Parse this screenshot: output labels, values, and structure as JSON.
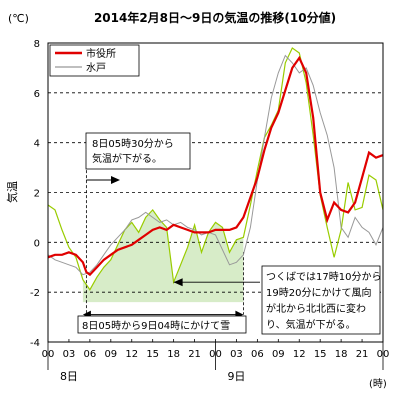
{
  "chart_data": {
    "type": "line",
    "title": "2014年2月8日～9日の気温の推移(10分値)",
    "unit_label": "(℃)",
    "ylabel": "気温",
    "xunit_label": "(時)",
    "ylim": [
      -4,
      8
    ],
    "yticks": [
      "-4",
      "-2",
      "0",
      "2",
      "4",
      "6",
      "8"
    ],
    "xlim": [
      0,
      48
    ],
    "xticks": [
      "00",
      "03",
      "06",
      "09",
      "12",
      "15",
      "18",
      "21",
      "00",
      "03",
      "06",
      "09",
      "12",
      "15",
      "18",
      "21",
      "00"
    ],
    "day_labels": [
      {
        "text": "8日",
        "hour": 3
      },
      {
        "text": "9日",
        "hour": 27
      }
    ],
    "legend": {
      "placement": "top-left"
    },
    "grid": "horizontal-dashed",
    "colors": {
      "市役所": "#e00000",
      "水戸": "#999999",
      "green": "#99cc00",
      "snow_fill": "#d7ecc8",
      "snow_border": "#000000"
    },
    "series": [
      {
        "name": "市役所",
        "x": [
          0,
          1,
          2,
          3,
          4,
          5,
          5.5,
          6,
          7,
          8,
          9,
          10,
          11,
          12,
          13,
          14,
          15,
          16,
          17,
          18,
          19,
          20,
          21,
          22,
          23,
          24,
          25,
          26,
          27,
          28,
          29,
          30,
          31,
          32,
          33,
          34,
          35,
          36,
          37,
          38,
          39,
          40,
          41,
          42,
          43,
          44,
          45,
          46,
          47,
          48
        ],
        "y": [
          -0.6,
          -0.5,
          -0.5,
          -0.4,
          -0.5,
          -0.8,
          -1.2,
          -1.3,
          -1.0,
          -0.7,
          -0.5,
          -0.3,
          -0.2,
          -0.1,
          0.1,
          0.3,
          0.5,
          0.6,
          0.5,
          0.7,
          0.6,
          0.5,
          0.4,
          0.4,
          0.4,
          0.5,
          0.5,
          0.5,
          0.6,
          1.0,
          1.8,
          2.6,
          3.7,
          4.6,
          5.2,
          6.1,
          7.0,
          7.4,
          6.8,
          5.0,
          2.0,
          0.9,
          1.6,
          1.3,
          1.2,
          1.6,
          2.6,
          3.6,
          3.4,
          3.5
        ]
      },
      {
        "name": "水戸",
        "x": [
          0,
          1,
          2,
          3,
          4,
          5,
          6,
          7,
          8,
          9,
          10,
          11,
          12,
          13,
          14,
          15,
          16,
          17,
          18,
          19,
          20,
          21,
          22,
          23,
          24,
          25,
          26,
          27,
          28,
          29,
          30,
          31,
          32,
          33,
          34,
          35,
          36,
          37,
          38,
          39,
          40,
          41,
          42,
          43,
          44,
          45,
          46,
          47,
          48
        ],
        "y": [
          -0.5,
          -0.7,
          -0.8,
          -0.9,
          -1.0,
          -1.3,
          -1.2,
          -0.9,
          -0.5,
          -0.1,
          0.2,
          0.5,
          0.9,
          1.0,
          1.2,
          1.0,
          0.8,
          0.9,
          0.7,
          0.8,
          0.6,
          0.5,
          0.3,
          0.4,
          0.3,
          -0.3,
          -0.9,
          -0.8,
          -0.5,
          0.6,
          2.5,
          4.2,
          5.8,
          6.8,
          7.5,
          7.2,
          6.8,
          7.0,
          6.3,
          5.2,
          4.3,
          3.0,
          0.6,
          0.2,
          1.0,
          0.6,
          0.4,
          -0.1,
          0.6
        ]
      },
      {
        "x": [
          0,
          1,
          2,
          3,
          4,
          5,
          6,
          7,
          8,
          9,
          10,
          11,
          12,
          13,
          14,
          15,
          16,
          17,
          18,
          19,
          20,
          21,
          22,
          23,
          24,
          25,
          26,
          27,
          28,
          29,
          30,
          31,
          32,
          33,
          34,
          35,
          36,
          37,
          38,
          39,
          40,
          41,
          42,
          43,
          44,
          45,
          46,
          47,
          48
        ],
        "y": [
          1.5,
          1.3,
          0.5,
          -0.2,
          -0.6,
          -1.5,
          -1.9,
          -1.4,
          -1.0,
          -0.7,
          -0.1,
          0.5,
          0.8,
          0.4,
          1.0,
          1.3,
          0.9,
          0.6,
          -1.6,
          -0.9,
          -0.2,
          0.7,
          -0.4,
          0.4,
          0.8,
          0.6,
          -0.4,
          0.1,
          0.2,
          1.5,
          2.9,
          4.2,
          4.7,
          5.3,
          7.2,
          7.8,
          7.6,
          6.4,
          4.3,
          1.9,
          0.6,
          -0.6,
          0.5,
          2.4,
          1.3,
          1.4,
          2.7,
          2.5,
          1.3
        ]
      }
    ],
    "annotations": [
      {
        "text": [
          "8日05時30分から",
          "気温が下がる。"
        ],
        "at_hour": 5.5
      },
      {
        "text": [
          "つくばでは17時10分から",
          "19時20分にかけて風向",
          "が北から北北西に変わ",
          "り、気温が下がる。"
        ],
        "at_hour": 18
      }
    ],
    "snow_band": {
      "from_hour": 5,
      "to_hour": 28,
      "label": "8日05時から9日04時にかけて雪"
    }
  }
}
